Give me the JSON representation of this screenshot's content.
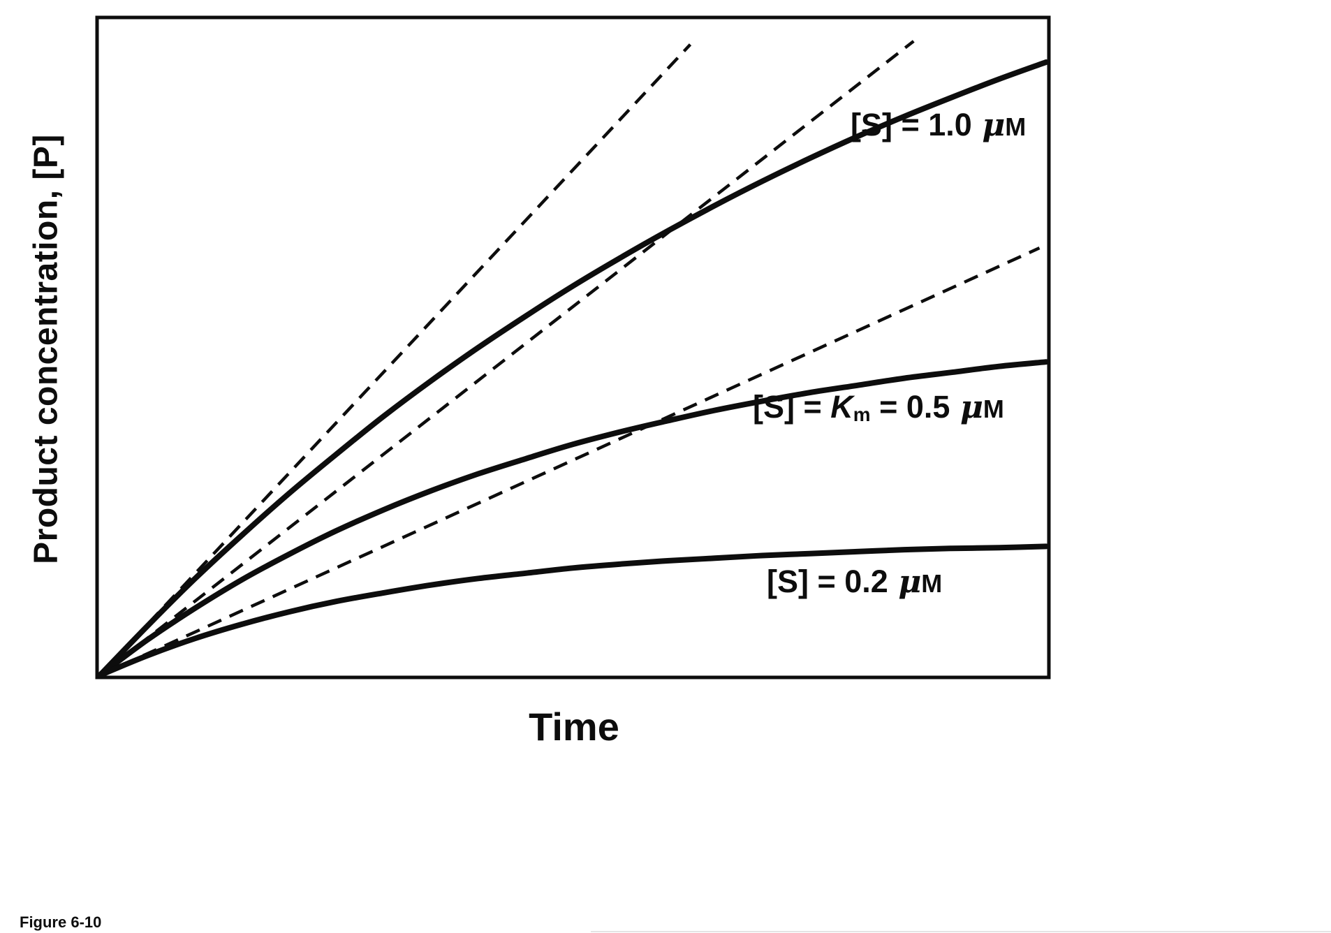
{
  "figure": {
    "caption": "Figure 6-10",
    "xlabel": "Time",
    "ylabel": "Product concentration, [P]"
  },
  "labels": {
    "s1": {
      "pre": "[S] = 1.0 ",
      "mu": "μ",
      "unit": "M"
    },
    "s2": {
      "pre": "[S] = ",
      "k": "K",
      "ksub": "m",
      "mid": " = 0.5 ",
      "mu": "μ",
      "unit": "M"
    },
    "s3": {
      "pre": "[S] = 0.2 ",
      "mu": "μ",
      "unit": "M"
    }
  },
  "colors": {
    "line": "#0d0d0d",
    "background": "#ffffff"
  },
  "chart_data": {
    "type": "line",
    "title": "",
    "xlabel": "Time",
    "ylabel": "Product concentration, [P]",
    "x_range": [
      0,
      1
    ],
    "y_range": [
      0,
      1
    ],
    "grid": false,
    "tick_labels": "none shown (unscaled axes)",
    "x": [
      0,
      0.05,
      0.1,
      0.15,
      0.2,
      0.25,
      0.3,
      0.35,
      0.4,
      0.45,
      0.5,
      0.55,
      0.6,
      0.65,
      0.7,
      0.75,
      0.8,
      0.85,
      0.9,
      0.95,
      1.0
    ],
    "series": [
      {
        "name": "[S] = 1.0 μM",
        "line": "solid",
        "values": [
          0,
          0.075,
          0.147,
          0.214,
          0.278,
          0.338,
          0.396,
          0.45,
          0.501,
          0.549,
          0.595,
          0.638,
          0.679,
          0.718,
          0.755,
          0.79,
          0.823,
          0.854,
          0.883,
          0.911,
          0.937
        ]
      },
      {
        "name": "[S] = Km = 0.5 μM",
        "line": "solid",
        "values": [
          0,
          0.054,
          0.102,
          0.146,
          0.185,
          0.221,
          0.253,
          0.282,
          0.308,
          0.331,
          0.353,
          0.372,
          0.389,
          0.405,
          0.419,
          0.432,
          0.443,
          0.454,
          0.463,
          0.472,
          0.479
        ]
      },
      {
        "name": "[S] = 0.2 μM",
        "line": "solid",
        "values": [
          0,
          0.03,
          0.056,
          0.078,
          0.097,
          0.113,
          0.126,
          0.138,
          0.148,
          0.156,
          0.164,
          0.17,
          0.175,
          0.179,
          0.183,
          0.186,
          0.189,
          0.192,
          0.194,
          0.195,
          0.197
        ]
      },
      {
        "name": "initial-velocity tangent for [S] = 1.0 μM",
        "line": "dashed",
        "points": [
          [
            0,
            0
          ],
          [
            0.624,
            0.964
          ]
        ]
      },
      {
        "name": "initial-velocity tangent for [S] = 0.5 μM",
        "line": "dashed",
        "points": [
          [
            0,
            0
          ],
          [
            0.86,
            0.969
          ]
        ]
      },
      {
        "name": "initial-velocity tangent for [S] = 0.2 μM",
        "line": "dashed",
        "points": [
          [
            0,
            0
          ],
          [
            0.993,
            0.653
          ]
        ]
      }
    ]
  }
}
